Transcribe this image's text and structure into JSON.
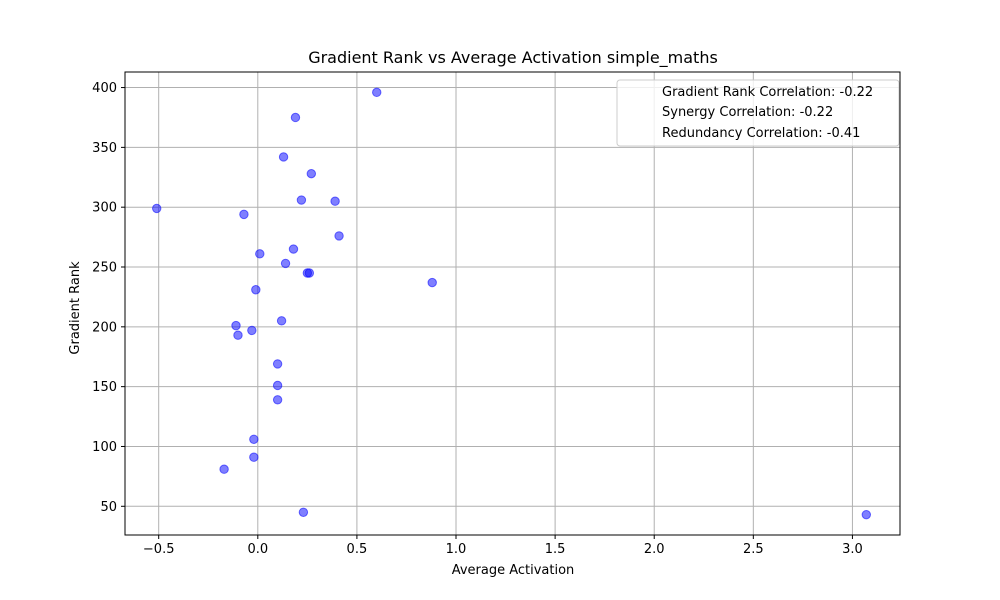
{
  "chart_data": {
    "type": "scatter",
    "title": "Gradient Rank vs Average Activation simple_maths",
    "xlabel": "Average Activation",
    "ylabel": "Gradient Rank",
    "xlim": [
      -0.67,
      3.24
    ],
    "ylim": [
      26,
      413
    ],
    "xticks": [
      -0.5,
      0.0,
      0.5,
      1.0,
      1.5,
      2.0,
      2.5,
      3.0
    ],
    "xtick_labels": [
      "−0.5",
      "0.0",
      "0.5",
      "1.0",
      "1.5",
      "2.0",
      "2.5",
      "3.0"
    ],
    "yticks": [
      50,
      100,
      150,
      200,
      250,
      300,
      350,
      400
    ],
    "ytick_labels": [
      "50",
      "100",
      "150",
      "200",
      "250",
      "300",
      "350",
      "400"
    ],
    "grid": true,
    "legend_position": "top-right",
    "marker_color": "#0000ff",
    "marker_alpha": 0.5,
    "legend": [
      "Gradient Rank Correlation: -0.22",
      "Synergy Correlation: -0.22",
      "Redundancy Correlation: -0.41"
    ],
    "points": [
      {
        "x": 0.6,
        "y": 396
      },
      {
        "x": 0.19,
        "y": 375
      },
      {
        "x": 0.13,
        "y": 342
      },
      {
        "x": 0.27,
        "y": 328
      },
      {
        "x": 0.22,
        "y": 306
      },
      {
        "x": 0.39,
        "y": 305
      },
      {
        "x": -0.51,
        "y": 299
      },
      {
        "x": -0.07,
        "y": 294
      },
      {
        "x": 0.41,
        "y": 276
      },
      {
        "x": 0.18,
        "y": 265
      },
      {
        "x": 0.01,
        "y": 261
      },
      {
        "x": 0.14,
        "y": 253
      },
      {
        "x": 0.25,
        "y": 245
      },
      {
        "x": 0.26,
        "y": 245
      },
      {
        "x": 0.88,
        "y": 237
      },
      {
        "x": -0.01,
        "y": 231
      },
      {
        "x": 0.12,
        "y": 205
      },
      {
        "x": -0.11,
        "y": 201
      },
      {
        "x": -0.03,
        "y": 197
      },
      {
        "x": -0.1,
        "y": 193
      },
      {
        "x": 0.1,
        "y": 169
      },
      {
        "x": 0.1,
        "y": 151
      },
      {
        "x": 0.1,
        "y": 139
      },
      {
        "x": -0.02,
        "y": 106
      },
      {
        "x": -0.02,
        "y": 91
      },
      {
        "x": -0.17,
        "y": 81
      },
      {
        "x": 0.23,
        "y": 45
      },
      {
        "x": 3.07,
        "y": 43
      }
    ]
  }
}
